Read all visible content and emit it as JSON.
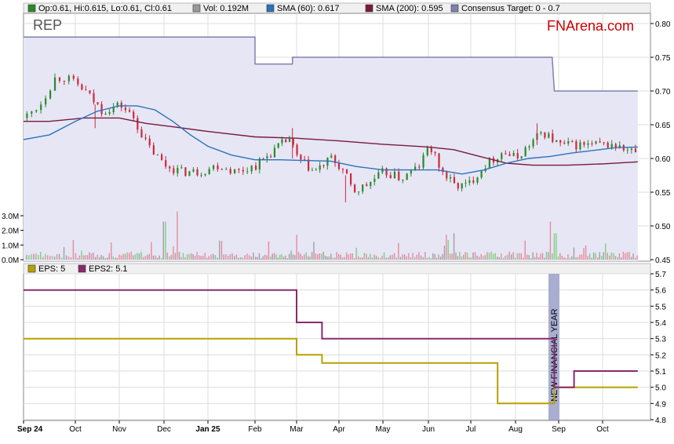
{
  "chart_data": [
    {
      "type": "candlestick",
      "ticker": "REP",
      "brand": "FNArena.com",
      "legend": [
        {
          "label": "Op:0.61, Hi:0.615, Lo:0.61, Cl:0.61",
          "color": "#2a8a2a"
        },
        {
          "label": "Vol: 0.192M",
          "color": "#999999"
        },
        {
          "label": "SMA (60): 0.617",
          "color": "#2b73b8"
        },
        {
          "label": "SMA (200): 0.595",
          "color": "#7a1a3a"
        },
        {
          "label": "Consensus Target: 0 - 0.7",
          "color": "#8080b0"
        }
      ],
      "x_months": [
        "Sep 24",
        "Oct",
        "Nov",
        "Dec",
        "Jan 25",
        "Feb",
        "Mar",
        "Apr",
        "May",
        "Jun",
        "Jul",
        "Aug",
        "Sep",
        "Oct"
      ],
      "x_months_bold": [
        "Sep 24",
        "Jan 25"
      ],
      "price_ylim": [
        0.45,
        0.8
      ],
      "price_ticks": [
        "0.80",
        "0.75",
        "0.70",
        "0.65",
        "0.60",
        "0.55",
        "0.50",
        "0.45"
      ],
      "volume_ticks": [
        "3.0M",
        "2.0M",
        "1.0M",
        "0.0M"
      ],
      "volume_ylim": [
        0,
        3.8
      ],
      "consensus_target": [
        {
          "t": 0,
          "v": 0.78
        },
        {
          "t": 5.0,
          "v": 0.78
        },
        {
          "t": 5.0,
          "v": 0.74
        },
        {
          "t": 5.9,
          "v": 0.74
        },
        {
          "t": 5.9,
          "v": 0.75
        },
        {
          "t": 11.85,
          "v": 0.75
        },
        {
          "t": 11.9,
          "v": 0.7
        },
        {
          "t": 13.8,
          "v": 0.7
        }
      ],
      "close_path": [
        {
          "t": 0,
          "v": 0.66
        },
        {
          "t": 0.3,
          "v": 0.68
        },
        {
          "t": 0.6,
          "v": 0.72
        },
        {
          "t": 0.8,
          "v": 0.72
        },
        {
          "t": 1.2,
          "v": 0.7
        },
        {
          "t": 1.6,
          "v": 0.67
        },
        {
          "t": 2.0,
          "v": 0.68
        },
        {
          "t": 2.3,
          "v": 0.66
        },
        {
          "t": 2.6,
          "v": 0.62
        },
        {
          "t": 3.0,
          "v": 0.59
        },
        {
          "t": 3.4,
          "v": 0.58
        },
        {
          "t": 3.8,
          "v": 0.58
        },
        {
          "t": 4.2,
          "v": 0.59
        },
        {
          "t": 4.6,
          "v": 0.58
        },
        {
          "t": 5.0,
          "v": 0.59
        },
        {
          "t": 5.4,
          "v": 0.61
        },
        {
          "t": 5.8,
          "v": 0.63
        },
        {
          "t": 6.0,
          "v": 0.6
        },
        {
          "t": 6.4,
          "v": 0.58
        },
        {
          "t": 6.8,
          "v": 0.6
        },
        {
          "t": 7.1,
          "v": 0.58
        },
        {
          "t": 7.3,
          "v": 0.55
        },
        {
          "t": 7.6,
          "v": 0.56
        },
        {
          "t": 8.0,
          "v": 0.58
        },
        {
          "t": 8.4,
          "v": 0.57
        },
        {
          "t": 8.8,
          "v": 0.59
        },
        {
          "t": 9.0,
          "v": 0.62
        },
        {
          "t": 9.3,
          "v": 0.58
        },
        {
          "t": 9.6,
          "v": 0.56
        },
        {
          "t": 9.9,
          "v": 0.56
        },
        {
          "t": 10.3,
          "v": 0.59
        },
        {
          "t": 10.7,
          "v": 0.61
        },
        {
          "t": 11.0,
          "v": 0.6
        },
        {
          "t": 11.3,
          "v": 0.62
        },
        {
          "t": 11.6,
          "v": 0.64
        },
        {
          "t": 12.0,
          "v": 0.62
        },
        {
          "t": 12.4,
          "v": 0.62
        },
        {
          "t": 12.8,
          "v": 0.62
        },
        {
          "t": 13.2,
          "v": 0.62
        },
        {
          "t": 13.6,
          "v": 0.61
        },
        {
          "t": 13.8,
          "v": 0.61
        }
      ],
      "sma60": [
        {
          "t": 0,
          "v": 0.628
        },
        {
          "t": 0.5,
          "v": 0.635
        },
        {
          "t": 1.0,
          "v": 0.655
        },
        {
          "t": 1.5,
          "v": 0.67
        },
        {
          "t": 2.0,
          "v": 0.678
        },
        {
          "t": 2.4,
          "v": 0.678
        },
        {
          "t": 2.8,
          "v": 0.672
        },
        {
          "t": 3.2,
          "v": 0.655
        },
        {
          "t": 3.6,
          "v": 0.635
        },
        {
          "t": 4.0,
          "v": 0.618
        },
        {
          "t": 4.5,
          "v": 0.605
        },
        {
          "t": 5.0,
          "v": 0.598
        },
        {
          "t": 5.6,
          "v": 0.598
        },
        {
          "t": 6.2,
          "v": 0.597
        },
        {
          "t": 6.8,
          "v": 0.596
        },
        {
          "t": 7.4,
          "v": 0.588
        },
        {
          "t": 8.0,
          "v": 0.583
        },
        {
          "t": 8.6,
          "v": 0.583
        },
        {
          "t": 9.2,
          "v": 0.583
        },
        {
          "t": 9.8,
          "v": 0.577
        },
        {
          "t": 10.3,
          "v": 0.583
        },
        {
          "t": 10.8,
          "v": 0.593
        },
        {
          "t": 11.3,
          "v": 0.6
        },
        {
          "t": 11.8,
          "v": 0.603
        },
        {
          "t": 12.3,
          "v": 0.608
        },
        {
          "t": 12.8,
          "v": 0.612
        },
        {
          "t": 13.3,
          "v": 0.616
        },
        {
          "t": 13.8,
          "v": 0.617
        }
      ],
      "sma200": [
        {
          "t": 0,
          "v": 0.655
        },
        {
          "t": 0.5,
          "v": 0.655
        },
        {
          "t": 1.2,
          "v": 0.66
        },
        {
          "t": 2.0,
          "v": 0.66
        },
        {
          "t": 2.6,
          "v": 0.652
        },
        {
          "t": 3.2,
          "v": 0.647
        },
        {
          "t": 4.0,
          "v": 0.64
        },
        {
          "t": 5.0,
          "v": 0.632
        },
        {
          "t": 6.0,
          "v": 0.63
        },
        {
          "t": 7.0,
          "v": 0.626
        },
        {
          "t": 8.0,
          "v": 0.621
        },
        {
          "t": 9.0,
          "v": 0.617
        },
        {
          "t": 9.6,
          "v": 0.613
        },
        {
          "t": 10.2,
          "v": 0.603
        },
        {
          "t": 10.8,
          "v": 0.593
        },
        {
          "t": 11.4,
          "v": 0.59
        },
        {
          "t": 12.2,
          "v": 0.59
        },
        {
          "t": 13.0,
          "v": 0.592
        },
        {
          "t": 13.8,
          "v": 0.595
        }
      ],
      "volume_peaks": [
        {
          "t": 2.7,
          "v": 1.2
        },
        {
          "t": 3.0,
          "v": 2.6
        },
        {
          "t": 3.3,
          "v": 3.3
        },
        {
          "t": 6.0,
          "v": 1.7
        },
        {
          "t": 9.4,
          "v": 1.7
        },
        {
          "t": 9.6,
          "v": 1.8
        },
        {
          "t": 11.2,
          "v": 1.3
        },
        {
          "t": 11.8,
          "v": 2.6
        },
        {
          "t": 11.9,
          "v": 1.8
        }
      ]
    },
    {
      "type": "line",
      "legend": [
        {
          "label": "EPS: 5",
          "color": "#b8a000"
        },
        {
          "label": "EPS2: 5.1",
          "color": "#8a2a6a"
        }
      ],
      "ylim": [
        4.8,
        5.7
      ],
      "ticks": [
        "5.7",
        "5.6",
        "5.5",
        "5.4",
        "5.3",
        "5.2",
        "5.1",
        "5.0",
        "4.9",
        "4.8"
      ],
      "annotation": "NEW FINANCIAL YEAR",
      "annotation_t": 12.0,
      "series": [
        {
          "name": "EPS",
          "color": "#b8a000",
          "points": [
            {
              "t": 0,
              "v": 5.3
            },
            {
              "t": 6.0,
              "v": 5.3
            },
            {
              "t": 6.0,
              "v": 5.2
            },
            {
              "t": 6.6,
              "v": 5.2
            },
            {
              "t": 6.6,
              "v": 5.15
            },
            {
              "t": 10.6,
              "v": 5.15
            },
            {
              "t": 10.6,
              "v": 4.9
            },
            {
              "t": 11.9,
              "v": 4.9
            },
            {
              "t": 11.9,
              "v": 5.0
            },
            {
              "t": 13.8,
              "v": 5.0
            }
          ]
        },
        {
          "name": "EPS2",
          "color": "#8a2a6a",
          "points": [
            {
              "t": 0,
              "v": 5.6
            },
            {
              "t": 6.0,
              "v": 5.6
            },
            {
              "t": 6.0,
              "v": 5.4
            },
            {
              "t": 6.6,
              "v": 5.4
            },
            {
              "t": 6.6,
              "v": 5.3
            },
            {
              "t": 11.9,
              "v": 5.3
            },
            {
              "t": 11.9,
              "v": 5.0
            },
            {
              "t": 12.35,
              "v": 5.0
            },
            {
              "t": 12.35,
              "v": 5.1
            },
            {
              "t": 13.8,
              "v": 5.1
            }
          ]
        }
      ]
    }
  ]
}
